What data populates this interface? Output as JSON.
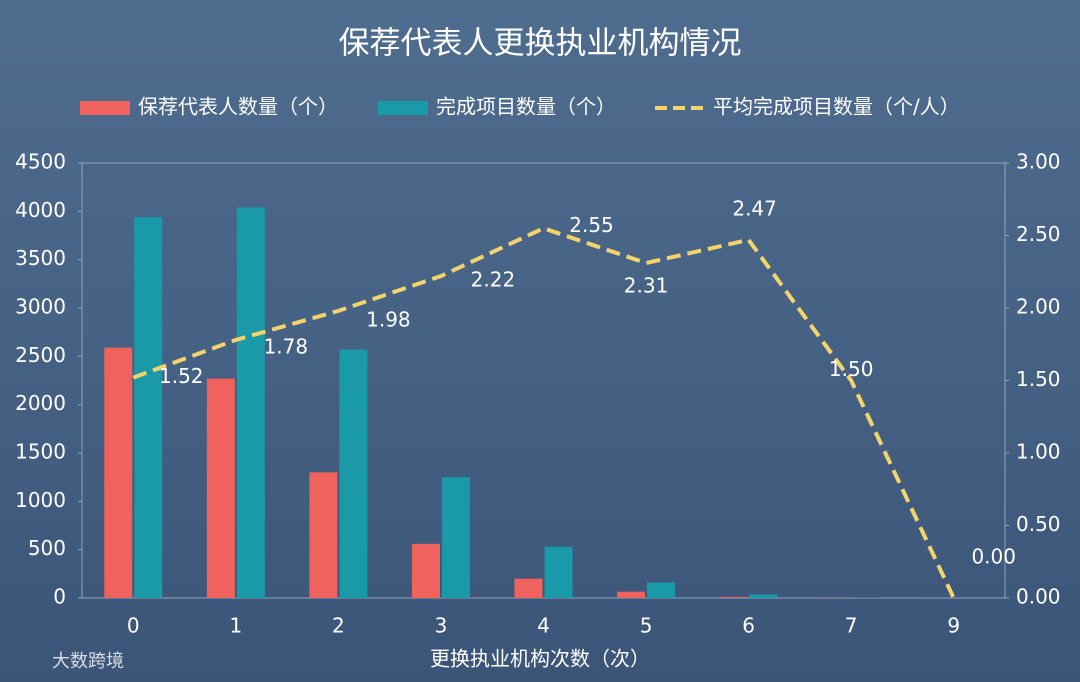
{
  "chart_data": {
    "type": "bar-line",
    "title": "保荐代表人更换执业机构情况",
    "x_label": "更换执业机构次数（次）",
    "watermark": "大数跨境",
    "categories": [
      "0",
      "1",
      "2",
      "3",
      "4",
      "5",
      "6",
      "7",
      "9"
    ],
    "series": [
      {
        "name": "保荐代表人数量（个）",
        "type": "bar",
        "color": "#f0625e",
        "values": [
          2590,
          2270,
          1300,
          560,
          200,
          65,
          10,
          2,
          1
        ]
      },
      {
        "name": "完成项目数量（个）",
        "type": "bar",
        "color": "#1a9aa8",
        "values": [
          3940,
          4040,
          2570,
          1250,
          530,
          160,
          35,
          3,
          0
        ]
      },
      {
        "name": "平均完成项目数量（个/人）",
        "type": "line",
        "axis": "y2",
        "color": "#f3d46b",
        "values": [
          1.52,
          1.78,
          1.98,
          2.22,
          2.55,
          2.31,
          2.47,
          1.5,
          0
        ],
        "value_labels": [
          "1.52",
          "1.78",
          "1.98",
          "2.22",
          "2.55",
          "2.31",
          "2.47",
          "1.50",
          "0.00"
        ]
      }
    ],
    "ylim": [
      0,
      4500
    ],
    "yticks": [
      0,
      500,
      1000,
      1500,
      2000,
      2500,
      3000,
      3500,
      4000,
      4500
    ],
    "y2lim": [
      0,
      3
    ],
    "y2ticks": [
      {
        "value": 0,
        "label": "0.00"
      },
      {
        "value": 0.5,
        "label": "0.50"
      },
      {
        "value": 1,
        "label": "1.00"
      },
      {
        "value": 1.5,
        "label": "1.50"
      },
      {
        "value": 2,
        "label": "2.00"
      },
      {
        "value": 2.5,
        "label": "2.50"
      },
      {
        "value": 3,
        "label": "3.00"
      }
    ],
    "legend": "top"
  }
}
